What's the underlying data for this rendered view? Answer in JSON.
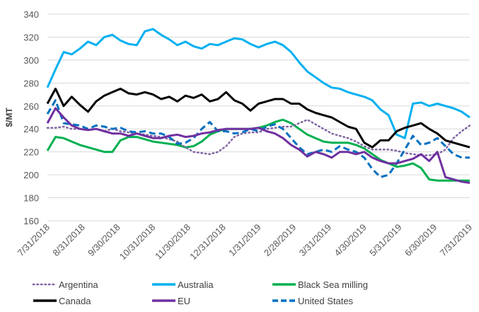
{
  "chart_data": {
    "type": "line",
    "title": "",
    "xlabel": "",
    "ylabel": "$/MT",
    "ylim": [
      160,
      340
    ],
    "yticks": [
      160,
      180,
      200,
      220,
      240,
      260,
      280,
      300,
      320,
      340
    ],
    "grid": true,
    "legend_position": "bottom",
    "x_tick_labels": [
      "7/31/2018",
      "8/31/2018",
      "9/30/2018",
      "10/31/2018",
      "11/30/2018",
      "12/31/2018",
      "1/31/2019",
      "2/28/2019",
      "3/31/2019",
      "4/30/2019",
      "5/31/2019",
      "6/30/2019",
      "7/31/2019"
    ],
    "x_note": "weekly observations, index 0 = 7/31/2018, index 52 = 7/31/2019",
    "series": [
      {
        "name": "Argentina",
        "color": "#8064a2",
        "style": "dotted",
        "values": [
          241,
          241,
          242,
          240,
          240,
          239,
          240,
          238,
          240,
          238,
          237,
          236,
          235,
          234,
          233,
          231,
          229,
          224,
          220,
          219,
          218,
          220,
          225,
          233,
          236,
          237,
          237,
          240,
          241,
          242,
          242,
          245,
          248,
          244,
          240,
          236,
          234,
          232,
          229,
          225,
          222,
          222,
          222,
          221,
          219,
          218,
          217,
          217,
          218,
          222,
          232,
          238,
          243
        ]
      },
      {
        "name": "Australia",
        "color": "#00b0f0",
        "style": "solid",
        "values": [
          276,
          292,
          307,
          305,
          310,
          316,
          313,
          320,
          322,
          317,
          314,
          313,
          325,
          327,
          322,
          318,
          313,
          316,
          312,
          310,
          314,
          313,
          316,
          319,
          318,
          314,
          311,
          314,
          316,
          313,
          307,
          298,
          290,
          285,
          280,
          276,
          275,
          272,
          270,
          268,
          265,
          257,
          252,
          235,
          232,
          262,
          263,
          260,
          262,
          260,
          258,
          255,
          250
        ]
      },
      {
        "name": "Black Sea milling",
        "color": "#00b050",
        "style": "solid",
        "values": [
          221,
          233,
          232,
          229,
          226,
          224,
          222,
          220,
          220,
          230,
          233,
          233,
          231,
          229,
          228,
          227,
          226,
          224,
          225,
          229,
          235,
          238,
          240,
          240,
          240,
          240,
          241,
          243,
          246,
          248,
          245,
          240,
          235,
          232,
          229,
          228,
          228,
          228,
          226,
          223,
          218,
          213,
          210,
          207,
          208,
          210,
          206,
          196,
          195,
          195,
          195,
          195,
          195
        ]
      },
      {
        "name": "Canada",
        "color": "#000000",
        "style": "solid",
        "values": [
          262,
          275,
          260,
          268,
          261,
          255,
          264,
          269,
          272,
          275,
          271,
          270,
          272,
          270,
          266,
          268,
          264,
          269,
          267,
          270,
          264,
          266,
          272,
          265,
          262,
          256,
          262,
          264,
          266,
          266,
          262,
          262,
          257,
          254,
          252,
          250,
          246,
          242,
          240,
          228,
          224,
          230,
          230,
          238,
          241,
          243,
          245,
          240,
          236,
          230,
          228,
          226,
          224
        ]
      },
      {
        "name": "EU",
        "color": "#7030a0",
        "style": "solid",
        "values": [
          245,
          258,
          250,
          243,
          240,
          239,
          240,
          238,
          236,
          236,
          234,
          236,
          234,
          232,
          232,
          234,
          235,
          233,
          234,
          236,
          237,
          239,
          240,
          240,
          240,
          240,
          241,
          238,
          236,
          232,
          226,
          222,
          216,
          220,
          218,
          215,
          220,
          220,
          218,
          220,
          215,
          212,
          210,
          210,
          212,
          214,
          218,
          212,
          220,
          198,
          196,
          194,
          193
        ]
      },
      {
        "name": "United States",
        "color": "#0070c0",
        "style": "dashed",
        "values": [
          253,
          265,
          245,
          244,
          243,
          240,
          243,
          242,
          240,
          241,
          238,
          237,
          238,
          236,
          236,
          233,
          227,
          228,
          232,
          240,
          246,
          238,
          238,
          236,
          237,
          240,
          238,
          242,
          244,
          240,
          232,
          224,
          218,
          220,
          222,
          220,
          225,
          222,
          220,
          215,
          205,
          198,
          200,
          210,
          222,
          234,
          226,
          228,
          232,
          225,
          218,
          215,
          215
        ]
      }
    ]
  }
}
